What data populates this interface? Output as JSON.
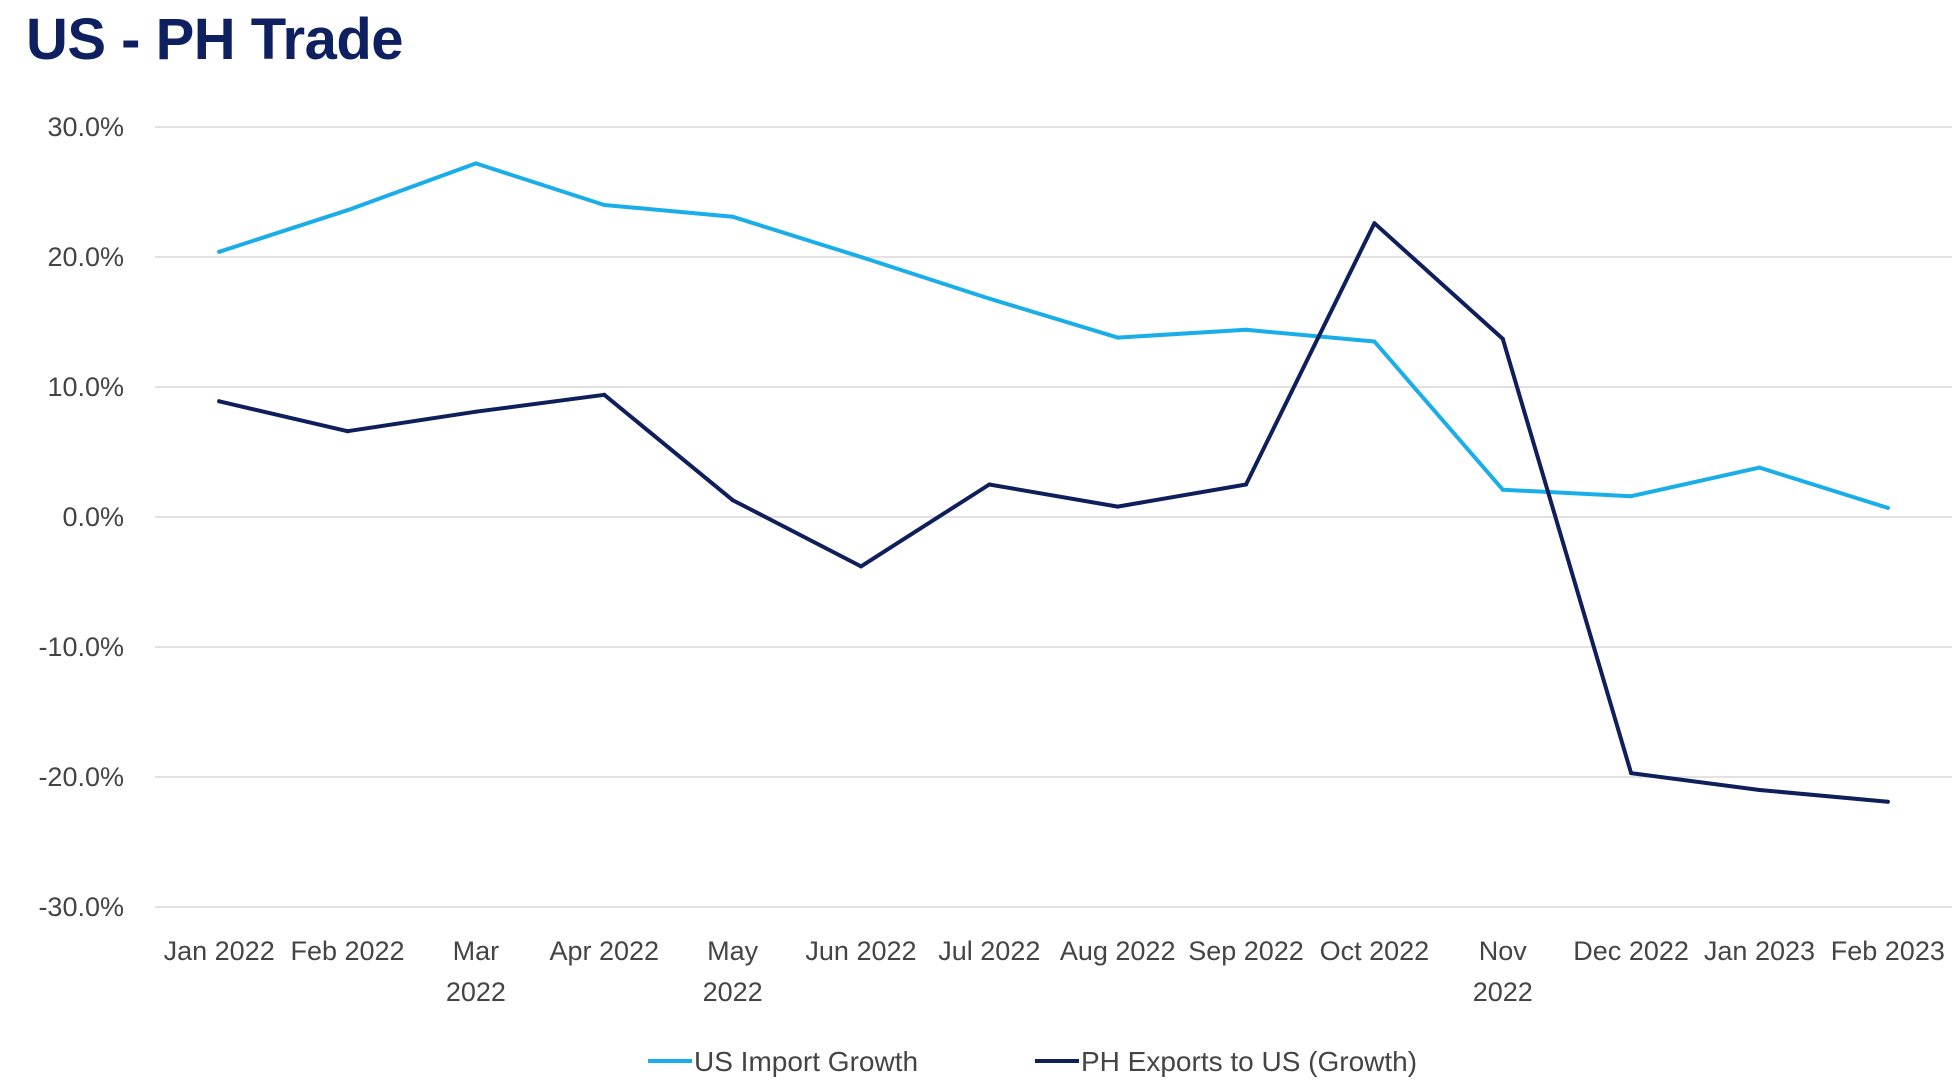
{
  "chart_data": {
    "type": "line",
    "title": "US - PH Trade",
    "categories": [
      [
        "Jan 2022"
      ],
      [
        "Feb 2022"
      ],
      [
        "Mar",
        "2022"
      ],
      [
        "Apr 2022"
      ],
      [
        "May",
        "2022"
      ],
      [
        "Jun 2022"
      ],
      [
        "Jul 2022"
      ],
      [
        "Aug 2022"
      ],
      [
        "Sep 2022"
      ],
      [
        "Oct 2022"
      ],
      [
        "Nov",
        "2022"
      ],
      [
        "Dec 2022"
      ],
      [
        "Jan 2023"
      ],
      [
        "Feb 2023"
      ]
    ],
    "ylim": [
      -30,
      30
    ],
    "yticks": [
      "30.0%",
      "20.0%",
      "10.0%",
      "0.0%",
      "-10.0%",
      "-20.0%",
      "-30.0%"
    ],
    "grid": true,
    "legend_position": "bottom",
    "series": [
      {
        "name": "US Import Growth",
        "color": "#1aaee8",
        "values": [
          20.4,
          23.6,
          27.2,
          24.0,
          23.1,
          20.0,
          16.8,
          13.8,
          14.4,
          13.5,
          2.1,
          1.6,
          3.8,
          0.7
        ]
      },
      {
        "name": "PH Exports to US (Growth)",
        "color": "#0e1f5b",
        "values": [
          8.9,
          6.6,
          8.1,
          9.4,
          1.3,
          -3.8,
          2.5,
          0.8,
          2.5,
          22.6,
          13.7,
          -19.7,
          -21.0,
          -21.9
        ]
      }
    ]
  }
}
